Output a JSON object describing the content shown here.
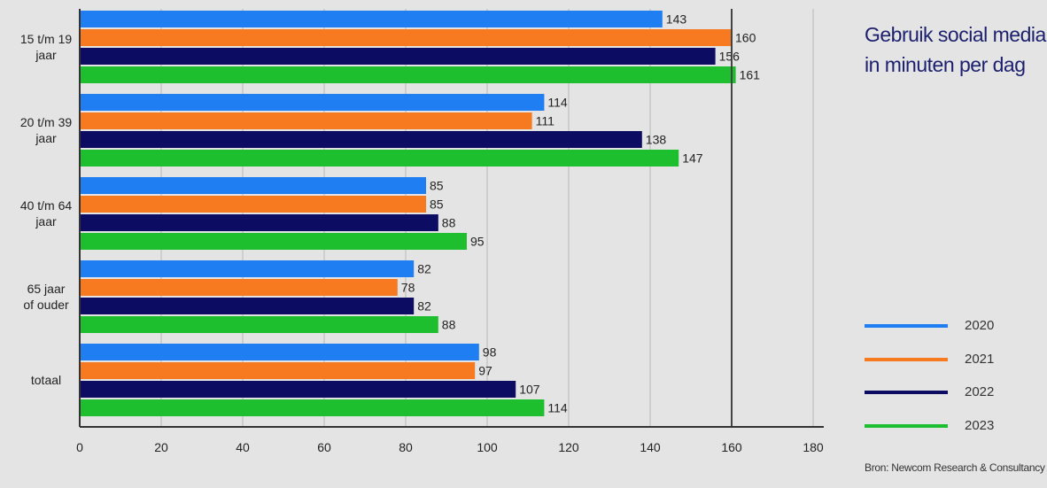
{
  "title_lines": [
    "Gebruik social media",
    "in minuten per dag"
  ],
  "source": "Bron: Newcom Research & Consultancy",
  "chart_data": {
    "type": "bar",
    "orientation": "horizontal",
    "categories": [
      [
        "15 t/m 19",
        "jaar"
      ],
      [
        "20 t/m 39",
        "jaar"
      ],
      [
        "40 t/m 64",
        "jaar"
      ],
      [
        "65 jaar",
        "of ouder"
      ],
      [
        "totaal"
      ]
    ],
    "series": [
      {
        "name": "2020",
        "color": "#1f7ef2",
        "values": [
          143,
          114,
          85,
          82,
          98
        ]
      },
      {
        "name": "2021",
        "color": "#f77a21",
        "values": [
          160,
          111,
          85,
          78,
          97
        ]
      },
      {
        "name": "2022",
        "color": "#0c0c63",
        "values": [
          156,
          138,
          88,
          82,
          107
        ]
      },
      {
        "name": "2023",
        "color": "#1dbf2e",
        "values": [
          161,
          147,
          95,
          88,
          114
        ]
      }
    ],
    "x_ticks": [
      0,
      20,
      40,
      60,
      80,
      100,
      120,
      140,
      160,
      180
    ],
    "xlim": [
      0,
      180
    ],
    "reference_line": 160,
    "grid": true,
    "legend_position": "right"
  }
}
